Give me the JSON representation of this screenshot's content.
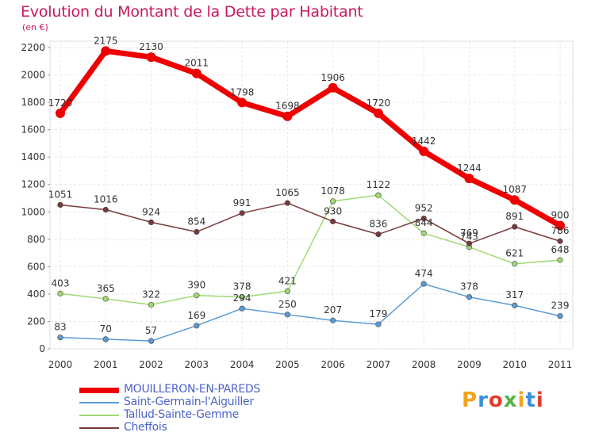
{
  "title": "Evolution du Montant de la Dette par Habitant",
  "unit": "(en €)",
  "brand": "Proxiti",
  "chart_data": {
    "type": "line",
    "x": [
      "2000",
      "2001",
      "2002",
      "2003",
      "2004",
      "2005",
      "2006",
      "2007",
      "2008",
      "2009",
      "2010",
      "2011"
    ],
    "ylim": [
      0,
      2200
    ],
    "yticks": [
      0,
      200,
      400,
      600,
      800,
      1000,
      1200,
      1400,
      1600,
      1800,
      2000,
      2200
    ],
    "grid": true,
    "legend_position": "bottom-left",
    "series": [
      {
        "name": "MOUILLERON-EN-PAREDS",
        "color": "#ee0000",
        "values": [
          1720,
          2175,
          2130,
          2011,
          1798,
          1698,
          1906,
          1720,
          1442,
          1244,
          1087,
          900
        ]
      },
      {
        "name": "Saint-Germain-l'Aiguiller",
        "color": "#5b9bd5",
        "values": [
          83,
          70,
          57,
          169,
          294,
          250,
          207,
          179,
          474,
          378,
          317,
          239
        ]
      },
      {
        "name": "Tallud-Sainte-Gemme",
        "color": "#9fd973",
        "values": [
          403,
          365,
          322,
          390,
          378,
          421,
          1078,
          1122,
          844,
          743,
          621,
          648
        ]
      },
      {
        "name": "Cheffois",
        "color": "#7a3a3a",
        "values": [
          1051,
          1016,
          924,
          854,
          991,
          1065,
          930,
          836,
          952,
          769,
          891,
          786
        ]
      }
    ]
  }
}
